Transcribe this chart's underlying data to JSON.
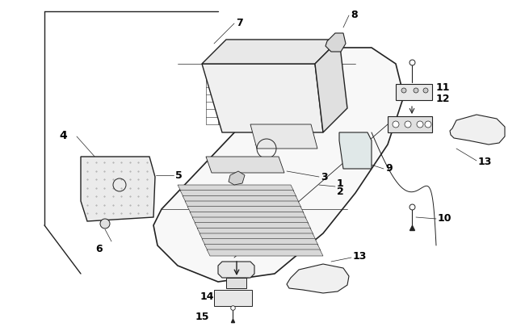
{
  "bg_color": "#ffffff",
  "line_color": "#222222",
  "label_color": "#000000",
  "figsize": [
    6.5,
    4.06
  ],
  "dpi": 100,
  "lw_main": 1.0,
  "lw_thin": 0.5,
  "label_fontsize": 8
}
